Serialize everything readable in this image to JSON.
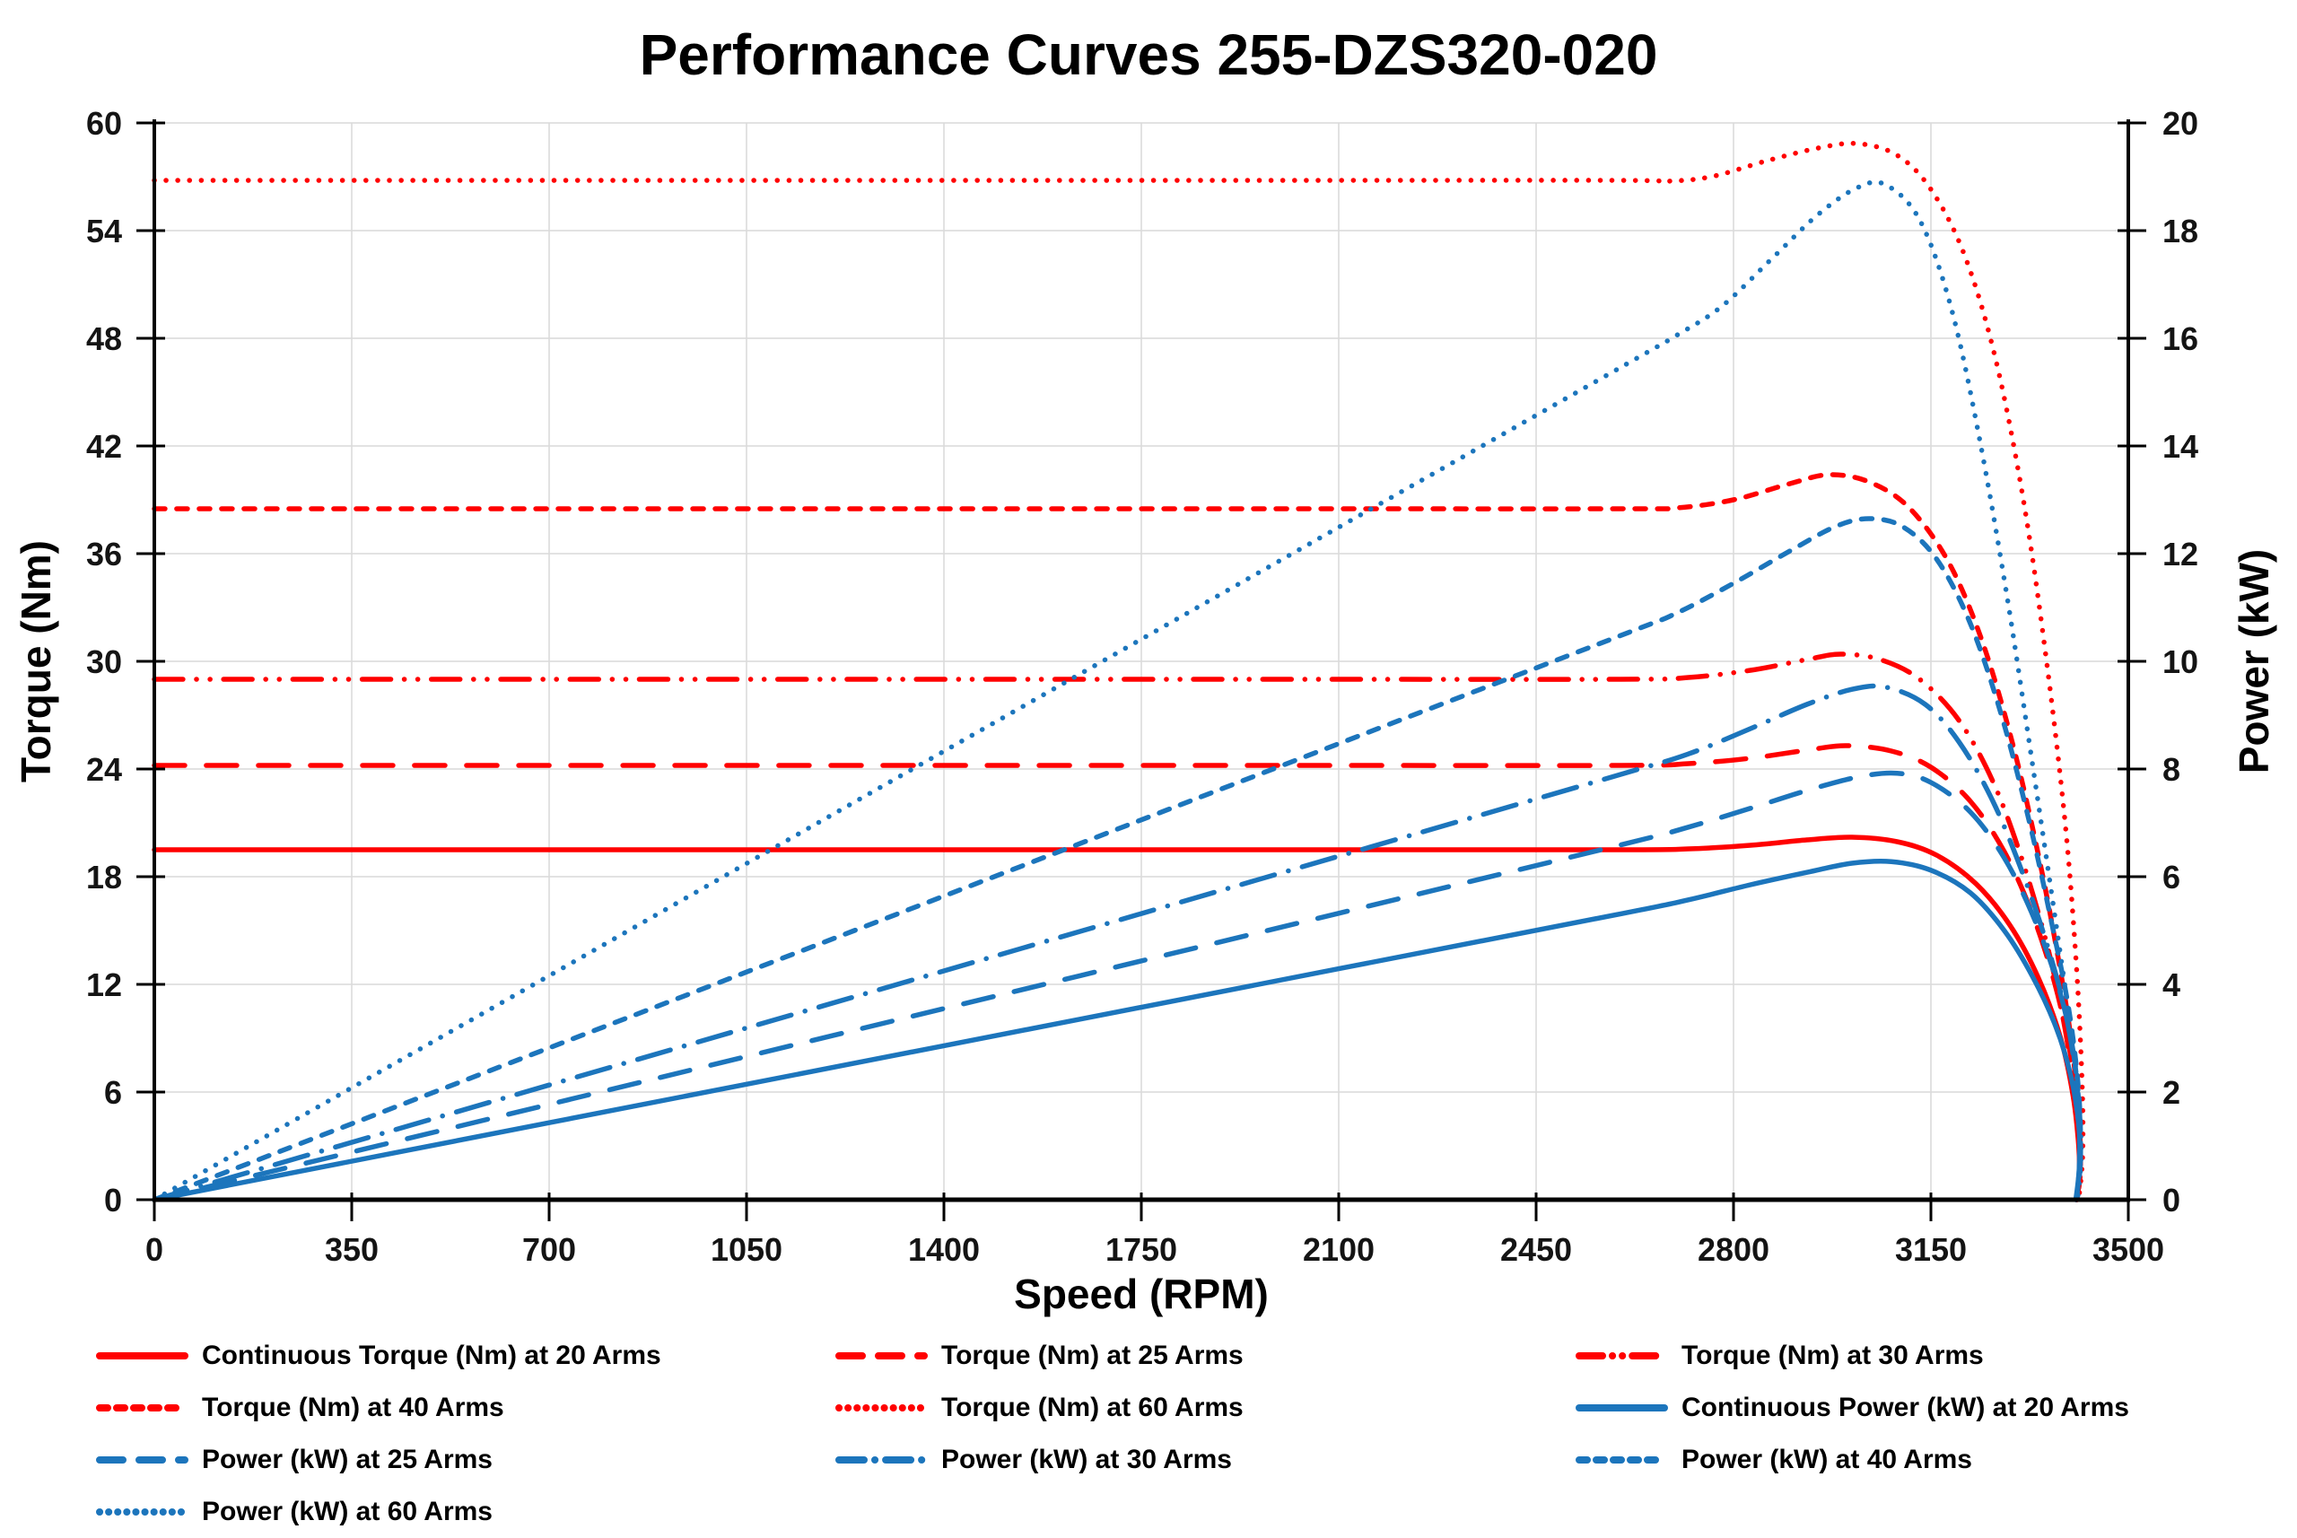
{
  "title": "Performance Curves 255-DZS320-020",
  "chart_data": {
    "type": "line",
    "title": "Performance Curves 255-DZS320-020",
    "xlabel": "Speed (RPM)",
    "ylabel_left": "Torque (Nm)",
    "ylabel_right": "Power (kW)",
    "x_range": [
      0,
      3500
    ],
    "y_left_range": [
      0,
      60
    ],
    "y_right_range": [
      0,
      20
    ],
    "x_ticks": [
      0,
      350,
      700,
      1050,
      1400,
      1750,
      2100,
      2450,
      2800,
      3150,
      3500
    ],
    "y_left_ticks": [
      0,
      6,
      12,
      18,
      24,
      30,
      36,
      42,
      48,
      54,
      60
    ],
    "y_right_ticks": [
      0,
      2,
      4,
      6,
      8,
      10,
      12,
      14,
      16,
      18,
      20
    ],
    "grid": true,
    "legend_position": "bottom",
    "legend_columns": 3,
    "colors": {
      "torque_red": "#FF0000",
      "power_blue": "#1C75BC",
      "gridline": "#D9D9D9",
      "axis": "#000000"
    },
    "series": [
      {
        "name": "Continuous Torque (Nm) at 20 Arms",
        "axis": "left",
        "color": "#FF0000",
        "style": "solid",
        "points": [
          [
            0,
            19.5
          ],
          [
            1000,
            19.5
          ],
          [
            2000,
            19.5
          ],
          [
            2600,
            19.5
          ],
          [
            2720,
            19.55
          ],
          [
            2830,
            19.75
          ],
          [
            2930,
            20.05
          ],
          [
            3010,
            20.2
          ],
          [
            3090,
            19.95
          ],
          [
            3160,
            19.2
          ],
          [
            3230,
            17.6
          ],
          [
            3290,
            15.3
          ],
          [
            3340,
            12.4
          ],
          [
            3380,
            9.0
          ],
          [
            3402,
            5.8
          ],
          [
            3412,
            3.0
          ],
          [
            3413,
            1.2
          ],
          [
            3408,
            0
          ]
        ]
      },
      {
        "name": "Torque (Nm) at 25 Arms",
        "axis": "left",
        "color": "#FF0000",
        "style": "long-dash",
        "points": [
          [
            0,
            24.2
          ],
          [
            1000,
            24.2
          ],
          [
            2000,
            24.2
          ],
          [
            2600,
            24.2
          ],
          [
            2720,
            24.3
          ],
          [
            2830,
            24.6
          ],
          [
            2930,
            25.05
          ],
          [
            3000,
            25.3
          ],
          [
            3080,
            25.0
          ],
          [
            3150,
            24.1
          ],
          [
            3220,
            22.2
          ],
          [
            3280,
            19.4
          ],
          [
            3330,
            15.9
          ],
          [
            3370,
            12.0
          ],
          [
            3398,
            8.0
          ],
          [
            3412,
            4.5
          ],
          [
            3415,
            1.8
          ],
          [
            3409,
            0
          ]
        ]
      },
      {
        "name": "Torque (Nm) at 30 Arms",
        "axis": "left",
        "color": "#FF0000",
        "style": "dash-dot-dot",
        "points": [
          [
            0,
            29.0
          ],
          [
            1000,
            29.0
          ],
          [
            2000,
            29.0
          ],
          [
            2600,
            29.0
          ],
          [
            2720,
            29.1
          ],
          [
            2830,
            29.5
          ],
          [
            2930,
            30.1
          ],
          [
            2990,
            30.4
          ],
          [
            3060,
            30.1
          ],
          [
            3130,
            29.0
          ],
          [
            3200,
            26.7
          ],
          [
            3260,
            23.3
          ],
          [
            3310,
            19.1
          ],
          [
            3355,
            14.3
          ],
          [
            3385,
            10.0
          ],
          [
            3405,
            6.0
          ],
          [
            3414,
            2.5
          ],
          [
            3409,
            0
          ]
        ]
      },
      {
        "name": "Torque (Nm) at 40 Arms",
        "axis": "left",
        "color": "#FF0000",
        "style": "short-dash",
        "points": [
          [
            0,
            38.5
          ],
          [
            1000,
            38.5
          ],
          [
            2000,
            38.5
          ],
          [
            2600,
            38.5
          ],
          [
            2700,
            38.55
          ],
          [
            2800,
            39.0
          ],
          [
            2900,
            39.9
          ],
          [
            2970,
            40.4
          ],
          [
            3040,
            40.0
          ],
          [
            3110,
            38.6
          ],
          [
            3180,
            35.6
          ],
          [
            3240,
            31.2
          ],
          [
            3295,
            25.4
          ],
          [
            3340,
            19.3
          ],
          [
            3375,
            13.6
          ],
          [
            3400,
            8.6
          ],
          [
            3413,
            4.2
          ],
          [
            3415,
            1.6
          ],
          [
            3409,
            0
          ]
        ]
      },
      {
        "name": "Torque (Nm) at 60 Arms",
        "axis": "left",
        "color": "#FF0000",
        "style": "dot",
        "points": [
          [
            0,
            56.8
          ],
          [
            1000,
            56.8
          ],
          [
            2000,
            56.8
          ],
          [
            2600,
            56.8
          ],
          [
            2680,
            56.75
          ],
          [
            2760,
            57.0
          ],
          [
            2860,
            57.9
          ],
          [
            2950,
            58.6
          ],
          [
            3020,
            58.85
          ],
          [
            3090,
            58.2
          ],
          [
            3150,
            56.3
          ],
          [
            3210,
            52.6
          ],
          [
            3265,
            46.8
          ],
          [
            3315,
            38.8
          ],
          [
            3355,
            30.0
          ],
          [
            3388,
            21.0
          ],
          [
            3408,
            13.0
          ],
          [
            3418,
            6.5
          ],
          [
            3419,
            2.5
          ],
          [
            3412,
            0
          ]
        ]
      },
      {
        "name": "Continuous Power (kW) at 20 Arms",
        "axis": "right",
        "color": "#1C75BC",
        "style": "solid",
        "points": [
          [
            0,
            0
          ],
          [
            700,
            1.43
          ],
          [
            1400,
            2.86
          ],
          [
            2100,
            4.29
          ],
          [
            2600,
            5.31
          ],
          [
            2720,
            5.57
          ],
          [
            2830,
            5.85
          ],
          [
            2930,
            6.08
          ],
          [
            3010,
            6.25
          ],
          [
            3080,
            6.28
          ],
          [
            3150,
            6.12
          ],
          [
            3220,
            5.7
          ],
          [
            3280,
            5.0
          ],
          [
            3330,
            4.15
          ],
          [
            3372,
            3.2
          ],
          [
            3398,
            2.3
          ],
          [
            3412,
            1.4
          ],
          [
            3413,
            0.6
          ],
          [
            3407,
            0
          ]
        ]
      },
      {
        "name": "Power (kW) at 25 Arms",
        "axis": "right",
        "color": "#1C75BC",
        "style": "long-dash",
        "points": [
          [
            0,
            0
          ],
          [
            700,
            1.77
          ],
          [
            1400,
            3.55
          ],
          [
            2100,
            5.32
          ],
          [
            2600,
            6.59
          ],
          [
            2720,
            6.92
          ],
          [
            2830,
            7.27
          ],
          [
            2930,
            7.6
          ],
          [
            3020,
            7.85
          ],
          [
            3090,
            7.92
          ],
          [
            3150,
            7.75
          ],
          [
            3220,
            7.2
          ],
          [
            3280,
            6.35
          ],
          [
            3330,
            5.3
          ],
          [
            3372,
            4.1
          ],
          [
            3400,
            2.9
          ],
          [
            3413,
            1.7
          ],
          [
            3415,
            0.7
          ],
          [
            3408,
            0
          ]
        ]
      },
      {
        "name": "Power (kW) at 30 Arms",
        "axis": "right",
        "color": "#1C75BC",
        "style": "dash-dot",
        "points": [
          [
            0,
            0
          ],
          [
            700,
            2.13
          ],
          [
            1400,
            4.25
          ],
          [
            2100,
            6.38
          ],
          [
            2600,
            7.9
          ],
          [
            2720,
            8.28
          ],
          [
            2830,
            8.75
          ],
          [
            2930,
            9.2
          ],
          [
            3010,
            9.48
          ],
          [
            3070,
            9.52
          ],
          [
            3140,
            9.2
          ],
          [
            3200,
            8.5
          ],
          [
            3260,
            7.4
          ],
          [
            3315,
            6.0
          ],
          [
            3360,
            4.6
          ],
          [
            3392,
            3.3
          ],
          [
            3410,
            2.0
          ],
          [
            3414,
            0.8
          ],
          [
            3408,
            0
          ]
        ]
      },
      {
        "name": "Power (kW) at 40 Arms",
        "axis": "right",
        "color": "#1C75BC",
        "style": "short-dash",
        "points": [
          [
            0,
            0
          ],
          [
            700,
            2.82
          ],
          [
            1400,
            5.64
          ],
          [
            2100,
            8.47
          ],
          [
            2600,
            10.48
          ],
          [
            2700,
            10.9
          ],
          [
            2800,
            11.45
          ],
          [
            2900,
            12.05
          ],
          [
            2980,
            12.5
          ],
          [
            3040,
            12.65
          ],
          [
            3100,
            12.5
          ],
          [
            3160,
            11.9
          ],
          [
            3220,
            10.7
          ],
          [
            3275,
            9.0
          ],
          [
            3325,
            7.0
          ],
          [
            3365,
            5.1
          ],
          [
            3395,
            3.5
          ],
          [
            3412,
            2.0
          ],
          [
            3415,
            0.8
          ],
          [
            3408,
            0
          ]
        ]
      },
      {
        "name": "Power (kW) at 60 Arms",
        "axis": "right",
        "color": "#1C75BC",
        "style": "dot",
        "points": [
          [
            0,
            0
          ],
          [
            700,
            4.16
          ],
          [
            1400,
            8.33
          ],
          [
            2100,
            12.49
          ],
          [
            2600,
            15.46
          ],
          [
            2700,
            16.06
          ],
          [
            2780,
            16.6
          ],
          [
            2870,
            17.5
          ],
          [
            2950,
            18.3
          ],
          [
            3020,
            18.8
          ],
          [
            3070,
            18.85
          ],
          [
            3130,
            18.2
          ],
          [
            3185,
            16.6
          ],
          [
            3235,
            14.2
          ],
          [
            3285,
            11.2
          ],
          [
            3330,
            8.1
          ],
          [
            3368,
            5.4
          ],
          [
            3395,
            3.4
          ],
          [
            3412,
            1.9
          ],
          [
            3416,
            0.8
          ],
          [
            3410,
            0
          ]
        ]
      }
    ]
  }
}
